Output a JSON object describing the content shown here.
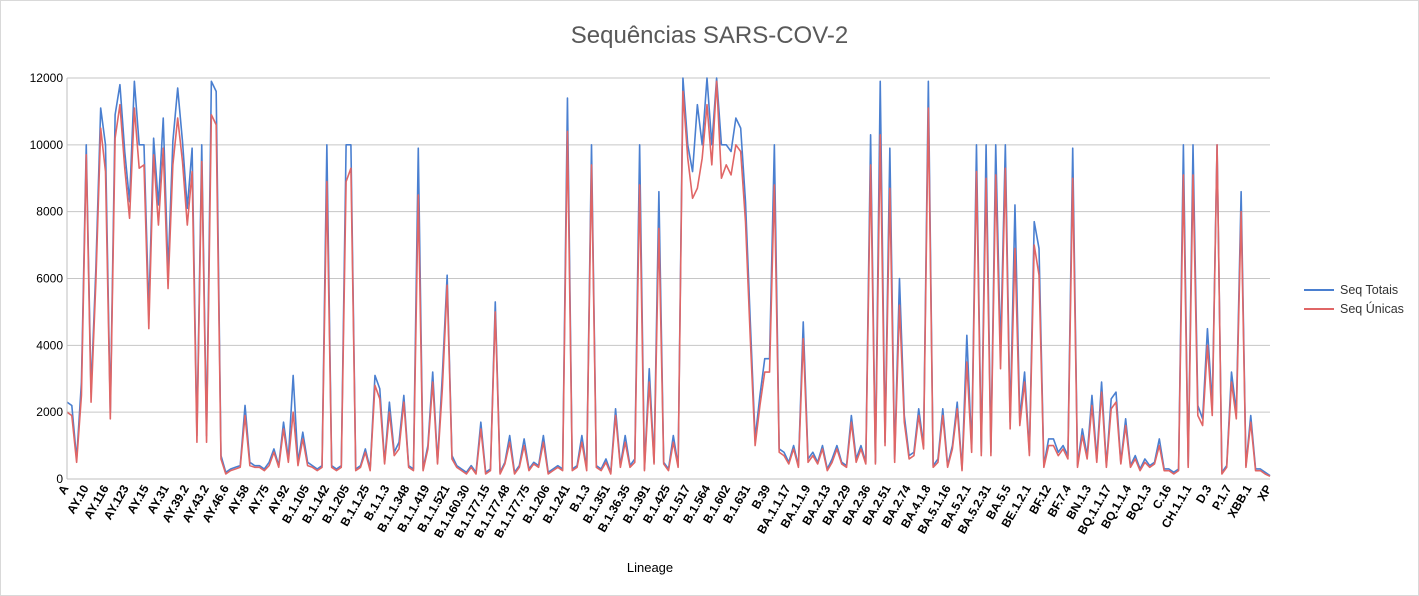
{
  "chart_data": {
    "type": "line",
    "title": "Sequências SARS-COV-2",
    "xlabel": "Lineage",
    "ylabel": "",
    "ylim": [
      0,
      12000
    ],
    "yticks": [
      0,
      2000,
      4000,
      6000,
      8000,
      10000,
      12000
    ],
    "grid": true,
    "legend_position": "right",
    "x_tick_labels": [
      "A",
      "AY.10",
      "AY.116",
      "AY.123",
      "AY.15",
      "AY.31",
      "AY.39.2",
      "AY.43.2",
      "AY.46.6",
      "AY.58",
      "AY.75",
      "AY.92",
      "B.1.105",
      "B.1.142",
      "B.1.205",
      "B.1.1.25",
      "B.1.1.3",
      "B.1.1.348",
      "B.1.1.419",
      "B.1.1.521",
      "B.1.160.30",
      "B.1.177.15",
      "B.1.177.48",
      "B.1.177.75",
      "B.1.206",
      "B.1.241",
      "B.1.3",
      "B.1.351",
      "B.1.36.35",
      "B.1.391",
      "B.1.425",
      "B.1.517",
      "B.1.564",
      "B.1.602",
      "B.1.631",
      "B.39",
      "BA.1.1.17",
      "BA.1.1.9",
      "BA.2.13",
      "BA.2.29",
      "BA.2.36",
      "BA.2.51",
      "BA.2.74",
      "BA.4.1.8",
      "BA.5.1.16",
      "BA.5.2.1",
      "BA.5.2.31",
      "BA.5.5",
      "BE.1.2.1",
      "BF.12",
      "BF.7.4",
      "BN.1.3",
      "BQ.1.1.17",
      "BQ.1.1.4",
      "BQ.1.3",
      "C.16",
      "CH.1.1.1",
      "D.3",
      "P.1.7",
      "XBB.1",
      "XP"
    ],
    "series": [
      {
        "name": "Seq Totais",
        "color": "#4a7fd0",
        "values": [
          2300,
          2200,
          600,
          2900,
          10000,
          2600,
          6300,
          11100,
          10000,
          2000,
          10900,
          11800,
          9800,
          8300,
          11900,
          10000,
          10000,
          5000,
          10200,
          8200,
          10800,
          6200,
          10100,
          11700,
          10100,
          8100,
          9900,
          1300,
          10000,
          1300,
          11900,
          11600,
          700,
          200,
          300,
          350,
          400,
          2200,
          500,
          400,
          400,
          300,
          500,
          900,
          400,
          1700,
          600,
          3100,
          500,
          1400,
          500,
          400,
          300,
          400,
          10000,
          400,
          300,
          400,
          10000,
          10000,
          300,
          400,
          900,
          300,
          3100,
          2700,
          500,
          2300,
          800,
          1100,
          2500,
          400,
          300,
          9900,
          300,
          1000,
          3200,
          500,
          3100,
          6100,
          700,
          400,
          300,
          200,
          400,
          200,
          1700,
          200,
          300,
          5300,
          200,
          500,
          1300,
          200,
          400,
          1200,
          300,
          500,
          400,
          1300,
          200,
          300,
          400,
          300,
          11400,
          300,
          400,
          1300,
          300,
          10000,
          400,
          300,
          600,
          200,
          2100,
          400,
          1300,
          400,
          600,
          10000,
          300,
          3300,
          500,
          8600,
          500,
          300,
          1300,
          400,
          12000,
          10000,
          9200,
          11200,
          10000,
          12000,
          10000,
          12000,
          10000,
          10000,
          9800,
          10800,
          10500,
          8300,
          4700,
          1200,
          2500,
          3600,
          3600,
          10000,
          900,
          800,
          500,
          1000,
          400,
          4700,
          600,
          800,
          500,
          1000,
          300,
          600,
          1000,
          500,
          400,
          1900,
          600,
          1000,
          500,
          10300,
          500,
          11900,
          1100,
          9900,
          600,
          6000,
          1900,
          700,
          800,
          2100,
          1000,
          11900,
          400,
          600,
          2100,
          400,
          1000,
          2300,
          300,
          4300,
          900,
          10000,
          800,
          10000,
          800,
          10000,
          3800,
          10000,
          1700,
          8200,
          1800,
          3200,
          800,
          7700,
          6900,
          400,
          1200,
          1200,
          800,
          1000,
          700,
          9900,
          400,
          1500,
          700,
          2500,
          600,
          2900,
          400,
          2400,
          2600,
          500,
          1800,
          400,
          700,
          300,
          600,
          400,
          500,
          1200,
          300,
          300,
          200,
          300,
          10000,
          400,
          10000,
          2200,
          1800,
          4500,
          2200,
          10000,
          200,
          400,
          3200,
          2000,
          8600,
          400,
          1900,
          300,
          300,
          200,
          100
        ]
      },
      {
        "name": "Seq Únicas",
        "color": "#e06666",
        "values": [
          2000,
          1900,
          500,
          2500,
          9700,
          2300,
          5900,
          10500,
          9200,
          1800,
          10200,
          11200,
          9300,
          7800,
          11100,
          9300,
          9400,
          4500,
          9700,
          7600,
          9900,
          5700,
          9400,
          10800,
          9500,
          7600,
          9200,
          1100,
          9500,
          1100,
          10900,
          10600,
          600,
          150,
          250,
          300,
          350,
          1900,
          400,
          350,
          350,
          250,
          400,
          800,
          350,
          1500,
          500,
          2000,
          400,
          1200,
          400,
          350,
          250,
          350,
          8900,
          350,
          250,
          350,
          8900,
          9300,
          250,
          350,
          800,
          250,
          2800,
          2400,
          450,
          2000,
          700,
          900,
          2300,
          350,
          250,
          8500,
          250,
          900,
          2900,
          450,
          2700,
          5800,
          600,
          350,
          250,
          150,
          350,
          150,
          1500,
          150,
          250,
          5000,
          150,
          450,
          1100,
          150,
          350,
          1000,
          250,
          450,
          350,
          1100,
          150,
          250,
          350,
          250,
          10400,
          250,
          350,
          1100,
          250,
          9400,
          350,
          250,
          500,
          150,
          1900,
          350,
          1100,
          350,
          500,
          8800,
          250,
          2900,
          450,
          7500,
          450,
          250,
          1100,
          350,
          11600,
          9600,
          8400,
          8700,
          9600,
          11200,
          9400,
          11900,
          9000,
          9400,
          9100,
          10000,
          9800,
          7700,
          4200,
          1000,
          2200,
          3200,
          3200,
          8800,
          800,
          700,
          450,
          900,
          350,
          4200,
          500,
          700,
          450,
          900,
          250,
          500,
          900,
          450,
          350,
          1700,
          500,
          900,
          450,
          9400,
          450,
          10300,
          1000,
          8700,
          500,
          5200,
          1700,
          600,
          700,
          1900,
          900,
          11100,
          350,
          500,
          1900,
          350,
          900,
          2100,
          250,
          3500,
          800,
          9200,
          700,
          9000,
          700,
          9100,
          3300,
          9300,
          1500,
          6900,
          1600,
          2900,
          700,
          7000,
          6100,
          350,
          1000,
          1000,
          700,
          900,
          600,
          9000,
          350,
          1300,
          600,
          2200,
          500,
          2600,
          350,
          2100,
          2300,
          450,
          1600,
          350,
          600,
          250,
          500,
          350,
          450,
          1000,
          250,
          250,
          150,
          250,
          9100,
          350,
          9100,
          1900,
          1600,
          4000,
          1900,
          10000,
          150,
          350,
          2900,
          1800,
          8000,
          350,
          1700,
          250,
          250,
          150,
          80
        ]
      }
    ]
  }
}
